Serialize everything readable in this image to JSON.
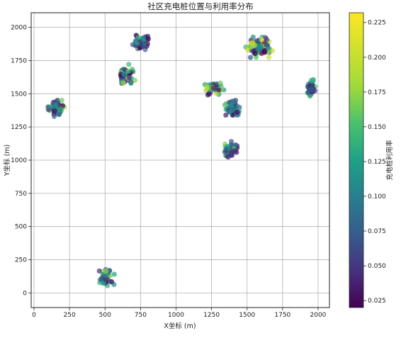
{
  "chart_data": {
    "type": "scatter",
    "title": "社区充电桩位置与利用率分布",
    "xlabel": "X坐标 (m)",
    "ylabel": "Y坐标 (m)",
    "colorbar_label": "充电桩利用率",
    "xlim": [
      -20,
      2080
    ],
    "ylim": [
      -110,
      2110
    ],
    "xticks": [
      0,
      250,
      500,
      750,
      1000,
      1250,
      1500,
      1750,
      2000
    ],
    "yticks": [
      0,
      250,
      500,
      750,
      1000,
      1250,
      1500,
      1750,
      2000
    ],
    "grid": true,
    "colormap": "viridis",
    "color_range": [
      0.02,
      0.232
    ],
    "colorbar_ticks": [
      0.025,
      0.05,
      0.075,
      0.1,
      0.125,
      0.15,
      0.175,
      0.2,
      0.225
    ],
    "marker_alpha": 0.7,
    "clusters": [
      {
        "center": [
          160,
          1390
        ],
        "count": 60,
        "spread": [
          55,
          55
        ],
        "util_range": [
          0.02,
          0.19
        ]
      },
      {
        "center": [
          750,
          1890
        ],
        "count": 55,
        "spread": [
          50,
          55
        ],
        "util_range": [
          0.02,
          0.18
        ]
      },
      {
        "center": [
          650,
          1650
        ],
        "count": 55,
        "spread": [
          55,
          65
        ],
        "util_range": [
          0.02,
          0.2
        ]
      },
      {
        "center": [
          1590,
          1850
        ],
        "count": 85,
        "spread": [
          90,
          70
        ],
        "util_range": [
          0.02,
          0.22
        ]
      },
      {
        "center": [
          1950,
          1540
        ],
        "count": 40,
        "spread": [
          25,
          65
        ],
        "util_range": [
          0.02,
          0.15
        ]
      },
      {
        "center": [
          1270,
          1540
        ],
        "count": 55,
        "spread": [
          60,
          55
        ],
        "util_range": [
          0.02,
          0.2
        ]
      },
      {
        "center": [
          1400,
          1400
        ],
        "count": 55,
        "spread": [
          55,
          55
        ],
        "util_range": [
          0.02,
          0.16
        ]
      },
      {
        "center": [
          1380,
          1080
        ],
        "count": 50,
        "spread": [
          45,
          55
        ],
        "util_range": [
          0.02,
          0.19
        ]
      },
      {
        "center": [
          510,
          110
        ],
        "count": 45,
        "spread": [
          50,
          60
        ],
        "util_range": [
          0.02,
          0.19
        ]
      }
    ]
  }
}
